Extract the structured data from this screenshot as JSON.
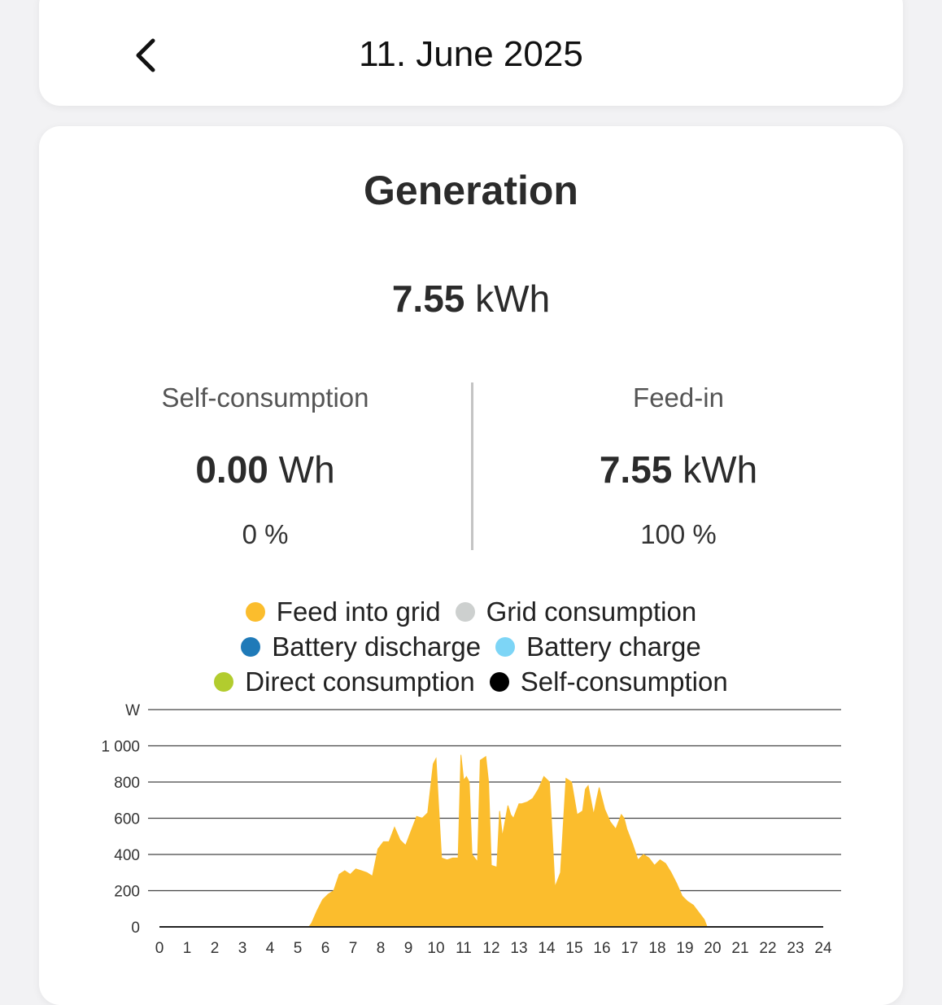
{
  "header": {
    "date": "11. June 2025",
    "back_icon": "chevron-left-icon"
  },
  "generation": {
    "title": "Generation",
    "total_value": "7.55",
    "total_unit": "kWh",
    "self_consumption": {
      "label": "Self-consumption",
      "value": "0.00",
      "unit": "Wh",
      "percent": "0 %"
    },
    "feed_in": {
      "label": "Feed-in",
      "value": "7.55",
      "unit": "kWh",
      "percent": "100 %"
    }
  },
  "legend": [
    {
      "label": "Feed into grid",
      "color": "#fbbd2d"
    },
    {
      "label": "Grid consumption",
      "color": "#cdd0cf"
    },
    {
      "label": "Battery discharge",
      "color": "#1f7ab8"
    },
    {
      "label": "Battery charge",
      "color": "#7dd5f6"
    },
    {
      "label": "Direct consumption",
      "color": "#b2cc2e"
    },
    {
      "label": "Self-consumption",
      "color": "#000000"
    }
  ],
  "chart_data": {
    "type": "area",
    "ylabel": "W",
    "ylim": [
      0,
      1200
    ],
    "yticks": [
      0,
      200,
      400,
      600,
      800,
      1000
    ],
    "ytick_labels": [
      "0",
      "200",
      "400",
      "600",
      "800",
      "1 000"
    ],
    "xlim": [
      0,
      24
    ],
    "xticks": [
      "0",
      "1",
      "2",
      "3",
      "4",
      "5",
      "6",
      "7",
      "8",
      "9",
      "10",
      "11",
      "12",
      "13",
      "14",
      "15",
      "16",
      "17",
      "18",
      "19",
      "20",
      "21",
      "22",
      "23",
      "24"
    ],
    "grid": true,
    "series": [
      {
        "name": "Feed into grid",
        "color": "#fbbd2d",
        "x": [
          0,
          5.4,
          5.5,
          5.7,
          5.9,
          6.1,
          6.3,
          6.5,
          6.7,
          6.9,
          7.1,
          7.3,
          7.5,
          7.7,
          7.9,
          8.1,
          8.3,
          8.5,
          8.7,
          8.9,
          9.1,
          9.3,
          9.5,
          9.7,
          9.9,
          10.0,
          10.1,
          10.2,
          10.4,
          10.6,
          10.8,
          10.9,
          11.0,
          11.1,
          11.2,
          11.3,
          11.5,
          11.6,
          11.8,
          11.9,
          12.0,
          12.2,
          12.3,
          12.4,
          12.6,
          12.7,
          12.8,
          12.9,
          13.0,
          13.1,
          13.3,
          13.5,
          13.7,
          13.9,
          14.1,
          14.3,
          14.5,
          14.7,
          14.9,
          15.1,
          15.3,
          15.4,
          15.5,
          15.7,
          15.8,
          15.9,
          16.1,
          16.3,
          16.5,
          16.7,
          16.8,
          16.9,
          17.1,
          17.3,
          17.5,
          17.7,
          17.9,
          18.1,
          18.3,
          18.5,
          18.7,
          18.9,
          19.1,
          19.3,
          19.5,
          19.7,
          19.8,
          19.9,
          20.0,
          24
        ],
        "y": [
          0,
          0,
          20,
          90,
          150,
          180,
          200,
          290,
          310,
          290,
          320,
          310,
          300,
          280,
          430,
          470,
          470,
          550,
          480,
          450,
          530,
          610,
          600,
          630,
          900,
          930,
          650,
          380,
          370,
          380,
          380,
          950,
          810,
          830,
          800,
          400,
          360,
          920,
          940,
          800,
          340,
          330,
          640,
          500,
          670,
          620,
          600,
          640,
          680,
          680,
          690,
          710,
          760,
          830,
          800,
          220,
          300,
          820,
          800,
          620,
          640,
          760,
          780,
          620,
          700,
          770,
          650,
          580,
          540,
          620,
          600,
          540,
          460,
          370,
          400,
          380,
          340,
          370,
          350,
          300,
          240,
          170,
          140,
          120,
          80,
          40,
          0,
          0,
          0,
          0
        ]
      },
      {
        "name": "Self-consumption",
        "color": "#000000",
        "x": [
          0,
          24
        ],
        "y": [
          0,
          0
        ]
      }
    ]
  }
}
